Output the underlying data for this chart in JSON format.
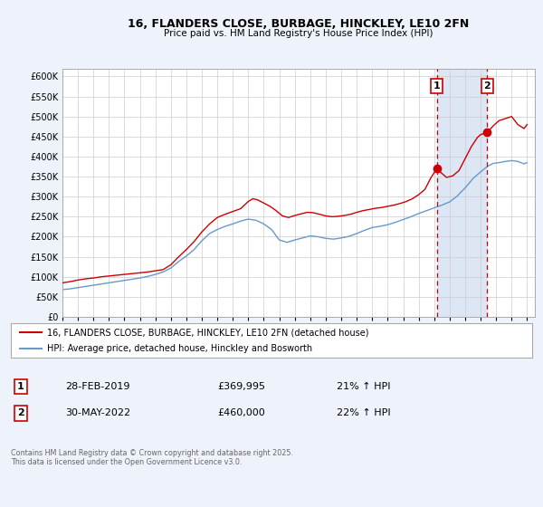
{
  "title": "16, FLANDERS CLOSE, BURBAGE, HINCKLEY, LE10 2FN",
  "subtitle": "Price paid vs. HM Land Registry's House Price Index (HPI)",
  "legend_line1": "16, FLANDERS CLOSE, BURBAGE, HINCKLEY, LE10 2FN (detached house)",
  "legend_line2": "HPI: Average price, detached house, Hinckley and Bosworth",
  "annotation1_num": "1",
  "annotation1_date": "28-FEB-2019",
  "annotation1_price": "£369,995",
  "annotation1_hpi": "21% ↑ HPI",
  "annotation2_num": "2",
  "annotation2_date": "30-MAY-2022",
  "annotation2_price": "£460,000",
  "annotation2_hpi": "22% ↑ HPI",
  "vline1_x": 2019.17,
  "vline2_x": 2022.42,
  "marker1_x": 2019.17,
  "marker1_y": 369995,
  "marker2_x": 2022.42,
  "marker2_y": 460000,
  "red_color": "#cc0000",
  "blue_color": "#6699cc",
  "background_color": "#eef2fb",
  "vspan_color": "#dce6f5",
  "plot_bg_color": "#ffffff",
  "ylim": [
    0,
    620000
  ],
  "xlim": [
    1995,
    2025.5
  ],
  "footer": "Contains HM Land Registry data © Crown copyright and database right 2025.\nThis data is licensed under the Open Government Licence v3.0.",
  "red_series_x": [
    1995.0,
    1995.5,
    1996.0,
    1996.5,
    1997.0,
    1997.5,
    1998.0,
    1998.5,
    1999.0,
    1999.5,
    2000.0,
    2000.5,
    2001.0,
    2001.5,
    2002.0,
    2002.5,
    2003.0,
    2003.5,
    2004.0,
    2004.5,
    2005.0,
    2005.5,
    2006.0,
    2006.5,
    2007.0,
    2007.3,
    2007.6,
    2008.0,
    2008.4,
    2008.8,
    2009.2,
    2009.6,
    2010.0,
    2010.4,
    2010.8,
    2011.2,
    2011.6,
    2012.0,
    2012.4,
    2012.8,
    2013.2,
    2013.6,
    2014.0,
    2014.4,
    2014.8,
    2015.2,
    2015.6,
    2016.0,
    2016.4,
    2016.8,
    2017.2,
    2017.6,
    2018.0,
    2018.4,
    2018.8,
    2019.17,
    2019.5,
    2019.8,
    2020.2,
    2020.6,
    2021.0,
    2021.4,
    2021.8,
    2022.0,
    2022.42,
    2022.7,
    2022.9,
    2023.2,
    2023.6,
    2024.0,
    2024.4,
    2024.8,
    2025.0
  ],
  "red_series_y": [
    85000,
    88000,
    92000,
    95000,
    97000,
    100000,
    102000,
    104000,
    106000,
    108000,
    110000,
    112000,
    115000,
    118000,
    130000,
    150000,
    168000,
    188000,
    212000,
    232000,
    248000,
    256000,
    263000,
    270000,
    288000,
    295000,
    292000,
    284000,
    276000,
    265000,
    252000,
    248000,
    253000,
    257000,
    261000,
    260000,
    256000,
    252000,
    250000,
    251000,
    253000,
    256000,
    261000,
    265000,
    268000,
    271000,
    273000,
    276000,
    279000,
    283000,
    288000,
    295000,
    305000,
    318000,
    348000,
    369995,
    358000,
    348000,
    352000,
    365000,
    395000,
    425000,
    448000,
    455000,
    460000,
    472000,
    480000,
    490000,
    495000,
    500000,
    480000,
    470000,
    480000
  ],
  "blue_series_x": [
    1995.0,
    1995.5,
    1996.0,
    1996.5,
    1997.0,
    1997.5,
    1998.0,
    1998.5,
    1999.0,
    1999.5,
    2000.0,
    2000.5,
    2001.0,
    2001.5,
    2002.0,
    2002.5,
    2003.0,
    2003.5,
    2004.0,
    2004.5,
    2005.0,
    2005.5,
    2006.0,
    2006.5,
    2007.0,
    2007.5,
    2008.0,
    2008.5,
    2009.0,
    2009.5,
    2010.0,
    2010.5,
    2011.0,
    2011.5,
    2012.0,
    2012.5,
    2013.0,
    2013.5,
    2014.0,
    2014.5,
    2015.0,
    2015.5,
    2016.0,
    2016.5,
    2017.0,
    2017.5,
    2018.0,
    2018.5,
    2019.0,
    2019.5,
    2020.0,
    2020.5,
    2021.0,
    2021.5,
    2022.0,
    2022.42,
    2022.8,
    2023.2,
    2023.6,
    2024.0,
    2024.4,
    2024.8,
    2025.0
  ],
  "blue_series_y": [
    68000,
    70000,
    73000,
    76000,
    79000,
    82000,
    85000,
    88000,
    91000,
    94000,
    97000,
    101000,
    106000,
    112000,
    122000,
    138000,
    152000,
    168000,
    190000,
    208000,
    218000,
    226000,
    232000,
    239000,
    244000,
    241000,
    232000,
    218000,
    192000,
    186000,
    192000,
    197000,
    202000,
    200000,
    196000,
    194000,
    197000,
    201000,
    208000,
    216000,
    223000,
    226000,
    230000,
    236000,
    243000,
    250000,
    258000,
    265000,
    272000,
    279000,
    287000,
    302000,
    322000,
    345000,
    362000,
    375000,
    383000,
    385000,
    388000,
    390000,
    388000,
    382000,
    385000
  ]
}
